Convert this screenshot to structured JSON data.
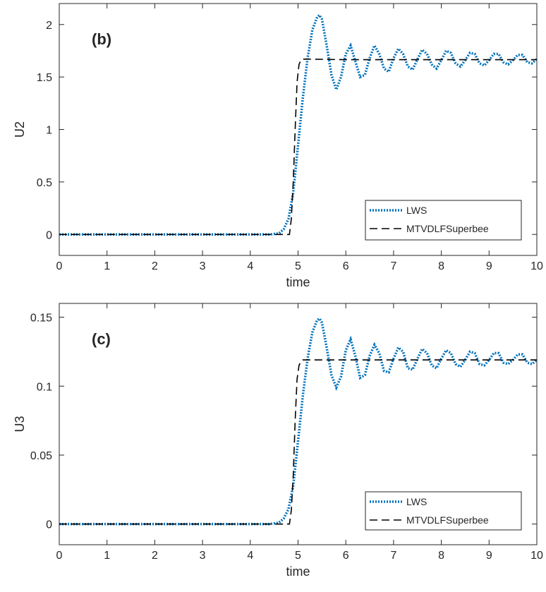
{
  "chart_data": [
    {
      "type": "line",
      "panel_label": "(b)",
      "xlabel": "time",
      "ylabel": "U2",
      "xlim": [
        0,
        10
      ],
      "ylim": [
        -0.2,
        2.2
      ],
      "xticks": [
        "0",
        "1",
        "2",
        "3",
        "4",
        "5",
        "6",
        "7",
        "8",
        "9",
        "10"
      ],
      "yticks": [
        "0",
        "0.5",
        "1",
        "1.5",
        "2"
      ],
      "legend_position": "bottom-right",
      "grid": false,
      "series": [
        {
          "name": "LWS",
          "style": "dotted",
          "color": "#0072BD",
          "x": [
            0,
            4.4,
            4.6,
            4.7,
            4.8,
            4.9,
            5.0,
            5.1,
            5.2,
            5.3,
            5.4,
            5.45,
            5.5,
            5.6,
            5.7,
            5.8,
            5.9,
            6.0,
            6.1,
            6.2,
            6.3,
            6.4,
            6.5,
            6.6,
            6.7,
            6.8,
            6.9,
            7.0,
            7.1,
            7.2,
            7.3,
            7.4,
            7.5,
            7.6,
            7.7,
            7.8,
            7.9,
            8.0,
            8.1,
            8.2,
            8.3,
            8.4,
            8.5,
            8.6,
            8.7,
            8.8,
            8.9,
            9.0,
            9.1,
            9.2,
            9.3,
            9.4,
            9.5,
            9.6,
            9.7,
            9.8,
            9.9,
            10.0
          ],
          "y": [
            0,
            0,
            0.01,
            0.05,
            0.15,
            0.4,
            0.85,
            1.3,
            1.68,
            1.95,
            2.07,
            2.09,
            2.05,
            1.8,
            1.52,
            1.38,
            1.5,
            1.72,
            1.8,
            1.65,
            1.5,
            1.52,
            1.68,
            1.8,
            1.72,
            1.58,
            1.55,
            1.68,
            1.77,
            1.72,
            1.6,
            1.57,
            1.67,
            1.76,
            1.72,
            1.62,
            1.58,
            1.66,
            1.75,
            1.73,
            1.63,
            1.6,
            1.66,
            1.73,
            1.72,
            1.63,
            1.61,
            1.66,
            1.72,
            1.72,
            1.64,
            1.62,
            1.66,
            1.71,
            1.71,
            1.64,
            1.63,
            1.67
          ]
        },
        {
          "name": "MTVDLFSuperbee",
          "style": "dashed",
          "color": "#000000",
          "x": [
            0,
            4.82,
            4.86,
            4.9,
            4.94,
            4.98,
            5.02,
            5.06,
            5.1,
            5.2,
            6,
            7,
            8,
            9,
            10
          ],
          "y": [
            0,
            0,
            0.15,
            0.5,
            1.0,
            1.45,
            1.62,
            1.66,
            1.67,
            1.67,
            1.665,
            1.665,
            1.665,
            1.665,
            1.665
          ]
        }
      ]
    },
    {
      "type": "line",
      "panel_label": "(c)",
      "xlabel": "time",
      "ylabel": "U3",
      "xlim": [
        0,
        10
      ],
      "ylim": [
        -0.015,
        0.16
      ],
      "xticks": [
        "0",
        "1",
        "2",
        "3",
        "4",
        "5",
        "6",
        "7",
        "8",
        "9",
        "10"
      ],
      "yticks": [
        "0",
        "0.05",
        "0.1",
        "0.15"
      ],
      "legend_position": "bottom-right",
      "grid": false,
      "series": [
        {
          "name": "LWS",
          "style": "dotted",
          "color": "#0072BD",
          "x": [
            0,
            4.4,
            4.6,
            4.7,
            4.8,
            4.9,
            5.0,
            5.1,
            5.2,
            5.3,
            5.4,
            5.45,
            5.5,
            5.6,
            5.7,
            5.8,
            5.9,
            6.0,
            6.1,
            6.2,
            6.3,
            6.4,
            6.5,
            6.6,
            6.7,
            6.8,
            6.9,
            7.0,
            7.1,
            7.2,
            7.3,
            7.4,
            7.5,
            7.6,
            7.7,
            7.8,
            7.9,
            8.0,
            8.1,
            8.2,
            8.3,
            8.4,
            8.5,
            8.6,
            8.7,
            8.8,
            8.9,
            9.0,
            9.1,
            9.2,
            9.3,
            9.4,
            9.5,
            9.6,
            9.7,
            9.8,
            9.9,
            10.0
          ],
          "y": [
            0,
            0,
            0.001,
            0.004,
            0.011,
            0.028,
            0.06,
            0.093,
            0.12,
            0.139,
            0.148,
            0.149,
            0.146,
            0.128,
            0.108,
            0.099,
            0.107,
            0.126,
            0.134,
            0.122,
            0.106,
            0.108,
            0.122,
            0.13,
            0.124,
            0.111,
            0.11,
            0.12,
            0.128,
            0.125,
            0.113,
            0.112,
            0.12,
            0.127,
            0.124,
            0.115,
            0.113,
            0.12,
            0.126,
            0.124,
            0.116,
            0.114,
            0.119,
            0.125,
            0.124,
            0.116,
            0.115,
            0.119,
            0.124,
            0.124,
            0.117,
            0.116,
            0.119,
            0.123,
            0.123,
            0.117,
            0.116,
            0.119
          ]
        },
        {
          "name": "MTVDLFSuperbee",
          "style": "dashed",
          "color": "#000000",
          "x": [
            0,
            4.82,
            4.86,
            4.9,
            4.94,
            4.98,
            5.02,
            5.06,
            5.1,
            5.2,
            6,
            7,
            8,
            9,
            10
          ],
          "y": [
            0,
            0,
            0.01,
            0.035,
            0.075,
            0.105,
            0.115,
            0.118,
            0.119,
            0.119,
            0.119,
            0.119,
            0.119,
            0.119,
            0.119
          ]
        }
      ]
    }
  ]
}
